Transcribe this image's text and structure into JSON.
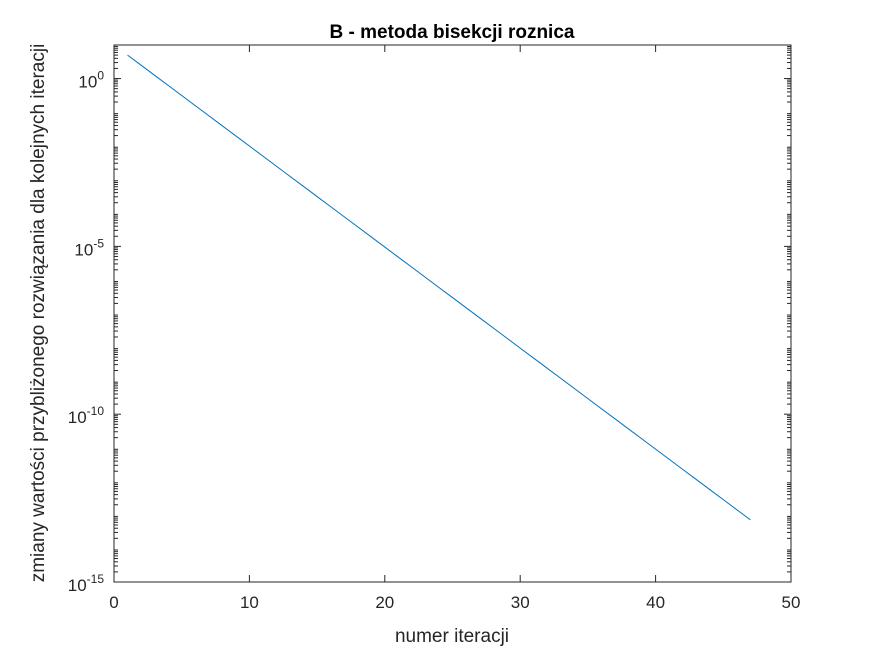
{
  "chart_data": {
    "type": "line",
    "title": "B - metoda bisekcji roznica",
    "xlabel": "numer iteracji",
    "ylabel": "zmiany wartości przybliżonego rozwiązania dla kolejnych iteracji",
    "xlim": [
      0,
      50
    ],
    "ylim": [
      1e-15,
      10
    ],
    "yscale": "log",
    "grid": false,
    "box": true,
    "line_color": "#0072BD",
    "axis_color": "#262626",
    "xticks": [
      0,
      10,
      20,
      30,
      40,
      50
    ],
    "xtick_labels": [
      "0",
      "10",
      "20",
      "30",
      "40",
      "50"
    ],
    "yticks": [
      1e-15,
      1e-10,
      1e-05,
      1
    ],
    "ytick_labels": [
      {
        "base": "10",
        "exp": "-15"
      },
      {
        "base": "10",
        "exp": "-10"
      },
      {
        "base": "10",
        "exp": "-5"
      },
      {
        "base": "10",
        "exp": "0"
      }
    ],
    "series": [
      {
        "x_start": 1,
        "x_end": 47,
        "y_start": 5,
        "ratio": 0.5
      }
    ]
  }
}
